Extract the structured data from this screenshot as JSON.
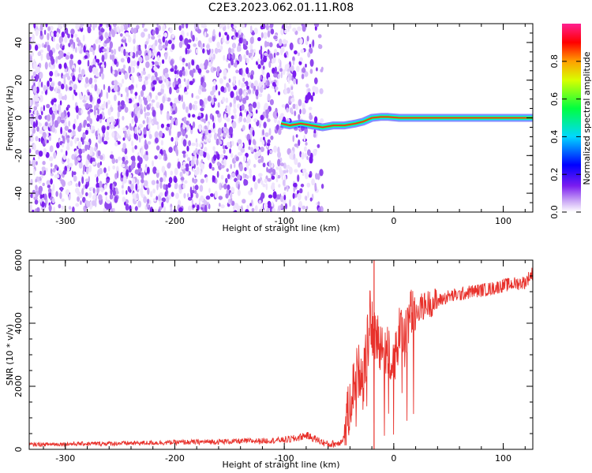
{
  "title": "C2E3.2023.062.01.11.R08",
  "colors": {
    "trace": "#e8312b",
    "noise": "#7a1cf0",
    "axis": "#000000"
  },
  "chart_data": [
    {
      "type": "heatmap",
      "xlabel": "Height of straight line (km)",
      "ylabel": "Frequency (Hz)",
      "xlim": [
        -333,
        127
      ],
      "ylim": [
        -50,
        50
      ],
      "x_ticks": [
        -300,
        -200,
        -100,
        0,
        100
      ],
      "y_ticks": [
        -40,
        -20,
        0,
        20,
        40
      ],
      "x_tick_labels": [
        "-300",
        "-200",
        "-100",
        "0",
        "100"
      ],
      "y_tick_labels": [
        "-40",
        "-20",
        "0",
        "20",
        "40"
      ],
      "noise_region_x": [
        -333,
        -65
      ],
      "signal_track": {
        "x": [
          -103,
          -95,
          -85,
          -75,
          -65,
          -55,
          -45,
          -35,
          -28,
          -20,
          -12,
          -5,
          5,
          15,
          40,
          80,
          127
        ],
        "y": [
          -3,
          -4,
          -3,
          -4,
          -5,
          -4,
          -4,
          -3,
          -2,
          0,
          0.5,
          0.5,
          0,
          0,
          0,
          0,
          0
        ]
      },
      "colorbar": {
        "label": "Normalized spectral amplitude",
        "range": [
          0,
          1
        ],
        "ticks": [
          0.0,
          0.2,
          0.4,
          0.6,
          0.8
        ],
        "tick_labels": [
          "0.0",
          "0.2",
          "0.4",
          "0.6",
          "0.8"
        ],
        "colormap": [
          "#ffffff",
          "#8a2be2",
          "#0000ff",
          "#00ffff",
          "#00ff00",
          "#ffff00",
          "#ff0000",
          "#ff00ff"
        ]
      }
    },
    {
      "type": "line",
      "xlabel": "Height of straight line (km)",
      "ylabel": "SNR (10 * v/v)",
      "xlim": [
        -333,
        127
      ],
      "ylim": [
        0,
        6000
      ],
      "x_ticks": [
        -300,
        -200,
        -100,
        0,
        100
      ],
      "y_ticks": [
        0,
        2000,
        4000,
        6000
      ],
      "x_tick_labels": [
        "-300",
        "-200",
        "-100",
        "0",
        "100"
      ],
      "y_tick_labels": [
        "0",
        "2000",
        "4000",
        "6000"
      ],
      "series": [
        {
          "x": [
            -333,
            -300,
            -250,
            -200,
            -150,
            -120,
            -100,
            -90,
            -80,
            -70,
            -60,
            -50,
            -45,
            -40,
            -35,
            -30,
            -25,
            -22,
            -18,
            -15,
            -10,
            -5,
            0,
            5,
            10,
            15,
            20,
            25,
            30,
            40,
            50,
            60,
            70,
            80,
            90,
            100,
            110,
            120,
            127
          ],
          "y": [
            150,
            170,
            190,
            220,
            250,
            270,
            300,
            340,
            450,
            300,
            150,
            200,
            400,
            1500,
            2300,
            2600,
            3000,
            4200,
            3600,
            3500,
            3300,
            3000,
            2900,
            3600,
            3800,
            4200,
            4400,
            4500,
            4600,
            4700,
            4850,
            4900,
            5000,
            5050,
            5100,
            5200,
            5250,
            5300,
            5600
          ],
          "spike": {
            "x": -18,
            "y": 6000
          }
        }
      ]
    }
  ]
}
